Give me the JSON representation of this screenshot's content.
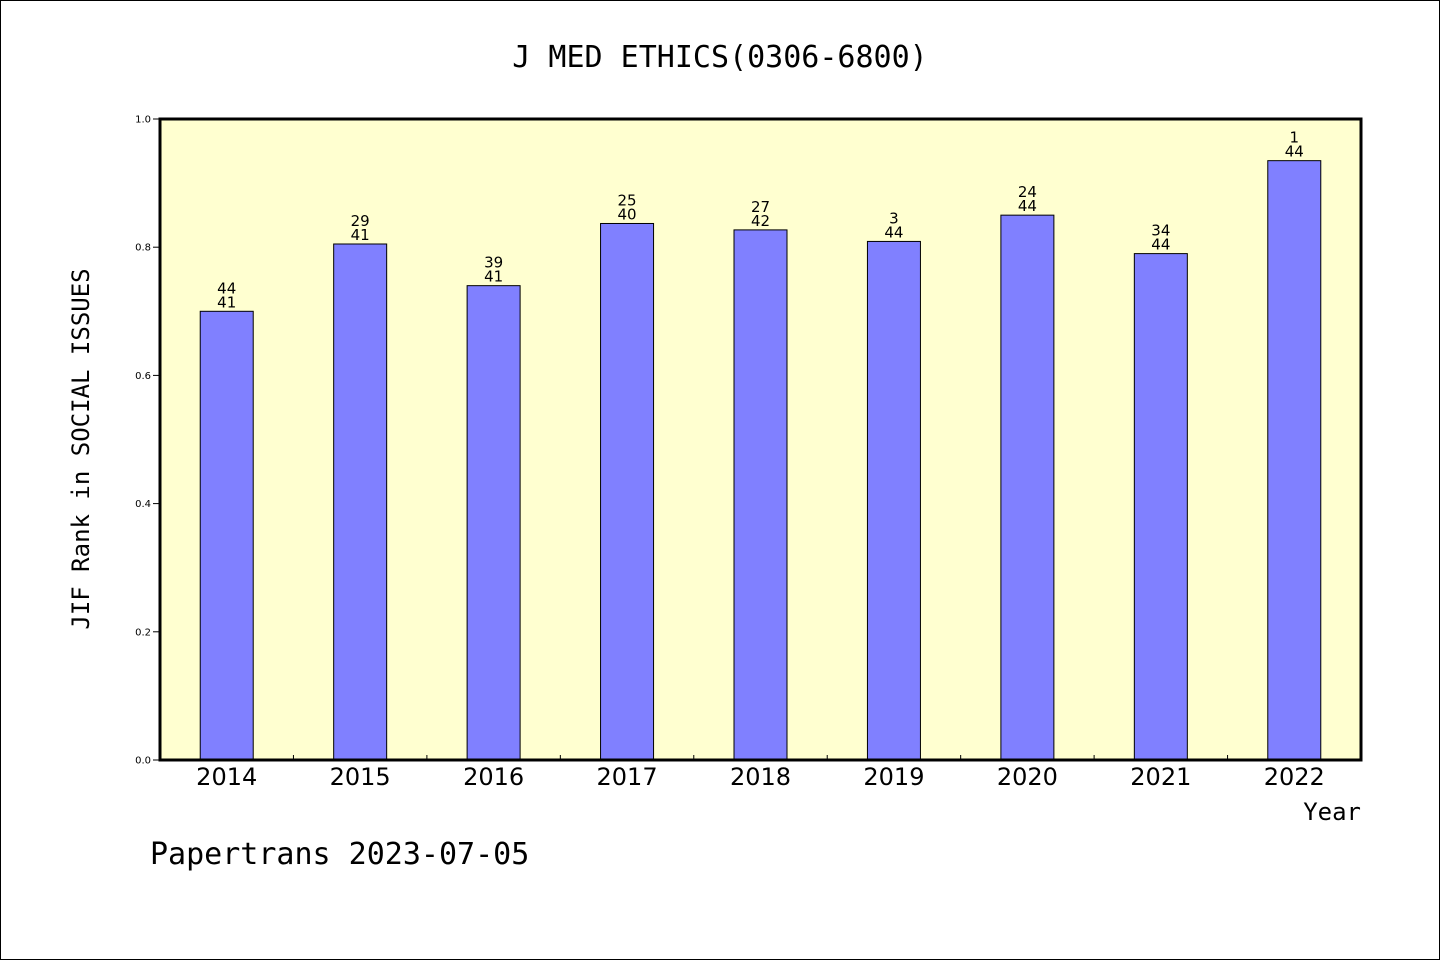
{
  "chart_data": {
    "type": "bar",
    "title": "J MED ETHICS(0306-6800)",
    "ylabel": "JIF Rank in SOCIAL ISSUES",
    "xlabel": "Year",
    "categories": [
      "2014",
      "2015",
      "2016",
      "2017",
      "2018",
      "2019",
      "2020",
      "2021",
      "2022"
    ],
    "values": [
      0.7,
      0.805,
      0.74,
      0.837,
      0.827,
      0.809,
      0.85,
      0.79,
      0.935
    ],
    "bar_labels": [
      [
        "44",
        "41"
      ],
      [
        "29",
        "41"
      ],
      [
        "39",
        "41"
      ],
      [
        "25",
        "40"
      ],
      [
        "27",
        "42"
      ],
      [
        "3",
        "44"
      ],
      [
        "24",
        "44"
      ],
      [
        "34",
        "44"
      ],
      [
        "1",
        "44"
      ]
    ],
    "ylim": [
      0,
      1.0
    ],
    "yticks": [
      "0.0",
      "0.2",
      "0.4",
      "0.6",
      "0.8",
      "1.0"
    ],
    "bar_color": "#8080ff",
    "plot_background": "#ffffd0",
    "grid": false
  },
  "footer": "Papertrans 2023-07-05"
}
